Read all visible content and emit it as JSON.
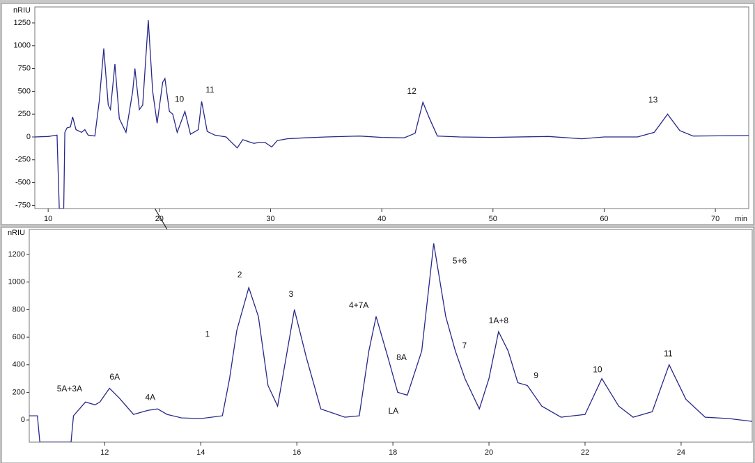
{
  "chart_data": [
    {
      "type": "line",
      "xlabel": "min",
      "ylabel": "nRIU",
      "color": "#27278a",
      "xlim": [
        8.8,
        73
      ],
      "ylim": [
        -785,
        1425
      ],
      "xticks": [
        10,
        20,
        30,
        40,
        50,
        60,
        70
      ],
      "yticks": [
        -750,
        -500,
        -250,
        0,
        250,
        500,
        750,
        1000,
        1250
      ],
      "x": [
        8.8,
        10,
        10.8,
        11.0,
        11.4,
        11.5,
        11.7,
        12.0,
        12.2,
        12.5,
        13,
        13.3,
        13.6,
        14.2,
        14.6,
        15.0,
        15.4,
        15.6,
        16.0,
        16.4,
        17.0,
        17.6,
        17.8,
        18.2,
        18.5,
        19.0,
        19.4,
        19.8,
        20.3,
        20.5,
        20.9,
        21.2,
        21.6,
        22.3,
        22.8,
        23.5,
        23.8,
        24.3,
        25,
        26,
        26.5,
        27,
        27.5,
        28,
        28.5,
        29,
        29.5,
        30.1,
        30.6,
        31.5,
        33,
        35,
        38,
        40,
        42,
        43,
        43.7,
        44.3,
        45,
        47,
        50,
        55,
        58,
        60,
        63,
        64.5,
        65.7,
        66.8,
        68,
        73
      ],
      "values": [
        0,
        5,
        20,
        -785,
        -785,
        50,
        100,
        110,
        220,
        80,
        50,
        80,
        20,
        10,
        400,
        970,
        350,
        300,
        800,
        200,
        50,
        500,
        750,
        300,
        350,
        1280,
        500,
        150,
        600,
        640,
        280,
        250,
        50,
        280,
        30,
        80,
        390,
        60,
        20,
        0,
        -60,
        -120,
        -30,
        -50,
        -70,
        -60,
        -60,
        -110,
        -40,
        -20,
        -10,
        0,
        10,
        -5,
        -10,
        40,
        380,
        200,
        10,
        0,
        -5,
        5,
        -20,
        0,
        0,
        50,
        250,
        70,
        10,
        15
      ],
      "annotations": [
        {
          "text": "10",
          "x": 21.8,
          "y": 410
        },
        {
          "text": "11",
          "x": 24.55,
          "y": 510
        },
        {
          "text": "12",
          "x": 42.7,
          "y": 495
        },
        {
          "text": "13",
          "x": 64.4,
          "y": 400
        }
      ]
    },
    {
      "type": "line",
      "ylabel": "nRIU",
      "color": "#27278a",
      "xlim": [
        10.43,
        25.48
      ],
      "ylim": [
        -161,
        1382
      ],
      "xticks": [
        12,
        14,
        16,
        18,
        20,
        22,
        24
      ],
      "yticks": [
        0,
        200,
        400,
        600,
        800,
        1000,
        1200
      ],
      "x": [
        10.43,
        10.6,
        10.65,
        11.3,
        11.35,
        11.6,
        11.8,
        11.9,
        12.1,
        12.3,
        12.6,
        12.9,
        13.1,
        13.3,
        13.6,
        14.0,
        14.45,
        14.6,
        14.75,
        15.0,
        15.2,
        15.4,
        15.6,
        15.8,
        15.95,
        16.2,
        16.5,
        17.0,
        17.3,
        17.5,
        17.65,
        17.9,
        18.1,
        18.3,
        18.6,
        18.85,
        19.1,
        19.3,
        19.5,
        19.8,
        20.0,
        20.2,
        20.4,
        20.6,
        20.8,
        21.1,
        21.5,
        22.0,
        22.35,
        22.7,
        23.0,
        23.4,
        23.75,
        24.1,
        24.5,
        25.0,
        25.48
      ],
      "values": [
        30,
        30,
        -161,
        -161,
        30,
        130,
        110,
        130,
        230,
        160,
        40,
        70,
        80,
        40,
        15,
        10,
        30,
        300,
        650,
        960,
        750,
        250,
        100,
        500,
        800,
        450,
        80,
        20,
        30,
        500,
        750,
        450,
        200,
        180,
        500,
        1280,
        750,
        500,
        300,
        80,
        300,
        640,
        500,
        270,
        250,
        100,
        20,
        40,
        300,
        100,
        20,
        60,
        400,
        150,
        20,
        10,
        -10
      ],
      "annotations": [
        {
          "text": "5A+3A",
          "x": 11.27,
          "y": 222
        },
        {
          "text": "6A",
          "x": 12.21,
          "y": 308
        },
        {
          "text": "4A",
          "x": 12.95,
          "y": 161
        },
        {
          "text": "1",
          "x": 14.14,
          "y": 620
        },
        {
          "text": "2",
          "x": 14.81,
          "y": 1049
        },
        {
          "text": "3",
          "x": 15.88,
          "y": 908
        },
        {
          "text": "4+7A",
          "x": 17.29,
          "y": 827
        },
        {
          "text": "8A",
          "x": 18.18,
          "y": 449
        },
        {
          "text": "LA",
          "x": 18.01,
          "y": 61
        },
        {
          "text": "5+6",
          "x": 19.39,
          "y": 1150
        },
        {
          "text": "7",
          "x": 19.49,
          "y": 535
        },
        {
          "text": "1A+8",
          "x": 20.2,
          "y": 716
        },
        {
          "text": "9",
          "x": 20.98,
          "y": 318
        },
        {
          "text": "10",
          "x": 22.26,
          "y": 363
        },
        {
          "text": "11",
          "x": 23.73,
          "y": 479
        }
      ]
    }
  ]
}
